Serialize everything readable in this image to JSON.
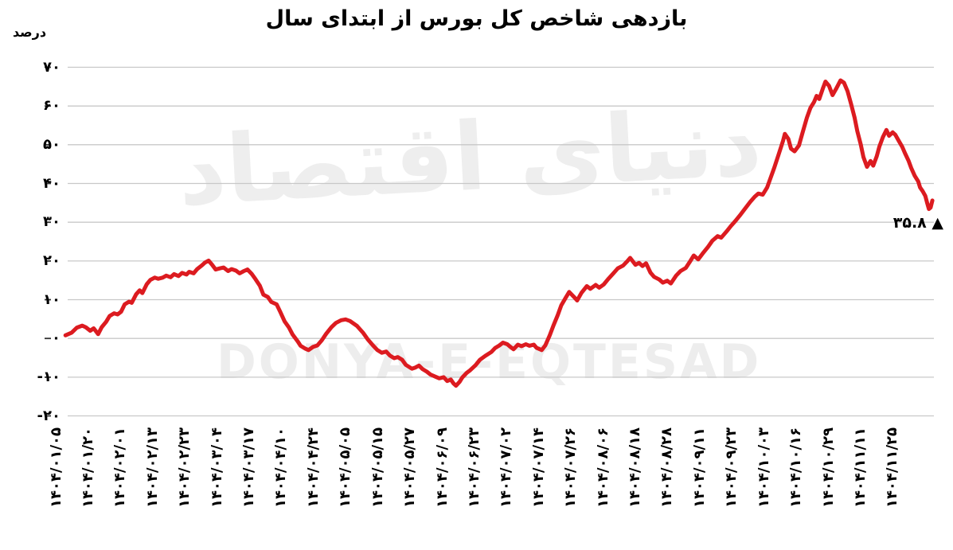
{
  "annotation": {
    "text": "۳۵.۸ ▲",
    "value_label": "۳۵.۸",
    "marker": "▲",
    "value": 35.8
  },
  "watermark": {
    "fa": "دنیای اقتصاد",
    "en": "DONYA-E-EQTESAD"
  },
  "colors": {
    "line": "#dc1b20",
    "grid": "#c8c8c8",
    "tick": "#333333",
    "text": "#000000",
    "watermark": "#ededed"
  },
  "chart_data": {
    "type": "line",
    "title": "بازدهی شاخص کل بورس از ابتدای سال",
    "ylabel": "درصد",
    "xlabel": "",
    "ylim": [
      -20,
      70
    ],
    "grid": true,
    "legend_position": "none",
    "x_tick_rotation": -90,
    "y_ticks": [
      70,
      60,
      50,
      40,
      30,
      20,
      10,
      0,
      -10,
      -20
    ],
    "y_tick_labels": [
      "۷۰",
      "۶۰",
      "۵۰",
      "۴۰",
      "۳۰",
      "۲۰",
      "۱۰",
      "۰",
      "-۱۰",
      "-۲۰"
    ],
    "x_tick_labels": [
      "۱۴۰۴/۰۱/۰۵",
      "۱۴۰۴/۰۱/۲۰",
      "۱۴۰۴/۰۲/۰۱",
      "۱۴۰۴/۰۲/۱۳",
      "۱۴۰۴/۰۲/۲۳",
      "۱۴۰۴/۰۳/۰۴",
      "۱۴۰۴/۰۳/۱۷",
      "۱۴۰۴/۰۴/۱۰",
      "۱۴۰۴/۰۴/۲۴",
      "۱۴۰۴/۰۵/۰۵",
      "۱۴۰۴/۰۵/۱۵",
      "۱۴۰۴/۰۵/۲۷",
      "۱۴۰۴/۰۶/۰۹",
      "۱۴۰۴/۰۶/۲۳",
      "۱۴۰۴/۰۷/۰۲",
      "۱۴۰۴/۰۷/۱۴",
      "۱۴۰۴/۰۷/۲۶",
      "۱۴۰۴/۰۸/۰۶",
      "۱۴۰۴/۰۸/۱۸",
      "۱۴۰۴/۰۸/۲۸",
      "۱۴۰۴/۰۹/۱۱",
      "۱۴۰۴/۰۹/۲۳",
      "۱۴۰۴/۱۰/۰۳",
      "۱۴۰۴/۱۰/۱۶",
      "۱۴۰۴/۱۰/۲۹",
      "۱۴۰۴/۱۱/۱۱",
      "۱۴۰۴/۱۱/۲۵"
    ],
    "last_value": 35.8,
    "series": [
      {
        "name": "بازدهی شاخص کل بورس",
        "color": "#dc1b20",
        "points": [
          [
            0.011,
            0.8
          ],
          [
            0.018,
            1.5
          ],
          [
            0.024,
            2.8
          ],
          [
            0.03,
            3.3
          ],
          [
            0.034,
            2.9
          ],
          [
            0.039,
            2.0
          ],
          [
            0.043,
            2.6
          ],
          [
            0.048,
            1.1
          ],
          [
            0.052,
            2.9
          ],
          [
            0.057,
            4.3
          ],
          [
            0.061,
            5.8
          ],
          [
            0.066,
            6.5
          ],
          [
            0.07,
            6.2
          ],
          [
            0.074,
            6.9
          ],
          [
            0.078,
            8.8
          ],
          [
            0.083,
            9.5
          ],
          [
            0.086,
            9.2
          ],
          [
            0.091,
            11.4
          ],
          [
            0.095,
            12.4
          ],
          [
            0.098,
            11.7
          ],
          [
            0.103,
            14.0
          ],
          [
            0.107,
            15.1
          ],
          [
            0.112,
            15.7
          ],
          [
            0.116,
            15.4
          ],
          [
            0.121,
            15.7
          ],
          [
            0.125,
            16.2
          ],
          [
            0.13,
            15.8
          ],
          [
            0.134,
            16.6
          ],
          [
            0.139,
            16.1
          ],
          [
            0.143,
            16.9
          ],
          [
            0.148,
            16.5
          ],
          [
            0.151,
            17.2
          ],
          [
            0.156,
            16.8
          ],
          [
            0.16,
            17.9
          ],
          [
            0.165,
            18.8
          ],
          [
            0.169,
            19.6
          ],
          [
            0.173,
            20.1
          ],
          [
            0.177,
            19.0
          ],
          [
            0.181,
            17.8
          ],
          [
            0.186,
            18.1
          ],
          [
            0.19,
            18.3
          ],
          [
            0.195,
            17.4
          ],
          [
            0.199,
            17.9
          ],
          [
            0.204,
            17.5
          ],
          [
            0.208,
            16.8
          ],
          [
            0.213,
            17.4
          ],
          [
            0.217,
            17.8
          ],
          [
            0.222,
            16.6
          ],
          [
            0.226,
            15.3
          ],
          [
            0.231,
            13.6
          ],
          [
            0.235,
            11.3
          ],
          [
            0.24,
            10.7
          ],
          [
            0.244,
            9.4
          ],
          [
            0.25,
            8.8
          ],
          [
            0.254,
            6.9
          ],
          [
            0.259,
            4.4
          ],
          [
            0.264,
            2.8
          ],
          [
            0.268,
            1.0
          ],
          [
            0.274,
            -0.8
          ],
          [
            0.277,
            -1.9
          ],
          [
            0.282,
            -2.6
          ],
          [
            0.286,
            -3.0
          ],
          [
            0.291,
            -2.2
          ],
          [
            0.296,
            -1.8
          ],
          [
            0.301,
            -0.5
          ],
          [
            0.306,
            1.2
          ],
          [
            0.312,
            2.9
          ],
          [
            0.317,
            4.0
          ],
          [
            0.323,
            4.7
          ],
          [
            0.328,
            4.9
          ],
          [
            0.333,
            4.5
          ],
          [
            0.341,
            3.2
          ],
          [
            0.348,
            1.4
          ],
          [
            0.353,
            -0.2
          ],
          [
            0.359,
            -1.8
          ],
          [
            0.364,
            -3.0
          ],
          [
            0.369,
            -3.7
          ],
          [
            0.374,
            -3.4
          ],
          [
            0.378,
            -4.4
          ],
          [
            0.383,
            -5.1
          ],
          [
            0.387,
            -4.8
          ],
          [
            0.392,
            -5.5
          ],
          [
            0.396,
            -6.8
          ],
          [
            0.403,
            -7.8
          ],
          [
            0.407,
            -7.5
          ],
          [
            0.411,
            -7.0
          ],
          [
            0.415,
            -7.9
          ],
          [
            0.42,
            -8.6
          ],
          [
            0.424,
            -9.3
          ],
          [
            0.43,
            -9.9
          ],
          [
            0.434,
            -10.3
          ],
          [
            0.439,
            -10.0
          ],
          [
            0.443,
            -11.0
          ],
          [
            0.447,
            -10.6
          ],
          [
            0.45,
            -11.6
          ],
          [
            0.453,
            -12.2
          ],
          [
            0.457,
            -11.2
          ],
          [
            0.46,
            -10.1
          ],
          [
            0.465,
            -8.9
          ],
          [
            0.469,
            -8.2
          ],
          [
            0.475,
            -6.9
          ],
          [
            0.48,
            -5.5
          ],
          [
            0.486,
            -4.5
          ],
          [
            0.493,
            -3.5
          ],
          [
            0.497,
            -2.5
          ],
          [
            0.502,
            -1.8
          ],
          [
            0.506,
            -1.1
          ],
          [
            0.511,
            -1.5
          ],
          [
            0.514,
            -2.1
          ],
          [
            0.518,
            -2.8
          ],
          [
            0.523,
            -1.6
          ],
          [
            0.527,
            -2.0
          ],
          [
            0.532,
            -1.5
          ],
          [
            0.536,
            -1.9
          ],
          [
            0.541,
            -1.6
          ],
          [
            0.544,
            -2.4
          ],
          [
            0.55,
            -3.0
          ],
          [
            0.554,
            -1.8
          ],
          [
            0.559,
            0.8
          ],
          [
            0.563,
            3.2
          ],
          [
            0.568,
            6.0
          ],
          [
            0.572,
            8.5
          ],
          [
            0.577,
            10.5
          ],
          [
            0.581,
            12.0
          ],
          [
            0.586,
            10.8
          ],
          [
            0.59,
            9.8
          ],
          [
            0.595,
            11.8
          ],
          [
            0.601,
            13.5
          ],
          [
            0.605,
            12.8
          ],
          [
            0.611,
            13.8
          ],
          [
            0.615,
            13.1
          ],
          [
            0.62,
            13.9
          ],
          [
            0.625,
            15.3
          ],
          [
            0.631,
            16.8
          ],
          [
            0.636,
            18.1
          ],
          [
            0.642,
            18.8
          ],
          [
            0.647,
            20.0
          ],
          [
            0.65,
            20.8
          ],
          [
            0.656,
            19.0
          ],
          [
            0.66,
            19.5
          ],
          [
            0.664,
            18.7
          ],
          [
            0.668,
            19.4
          ],
          [
            0.673,
            17.0
          ],
          [
            0.677,
            15.9
          ],
          [
            0.683,
            15.2
          ],
          [
            0.687,
            14.4
          ],
          [
            0.692,
            14.9
          ],
          [
            0.696,
            14.2
          ],
          [
            0.702,
            16.2
          ],
          [
            0.707,
            17.4
          ],
          [
            0.713,
            18.2
          ],
          [
            0.717,
            19.6
          ],
          [
            0.722,
            21.4
          ],
          [
            0.727,
            20.4
          ],
          [
            0.732,
            21.9
          ],
          [
            0.738,
            23.6
          ],
          [
            0.743,
            25.2
          ],
          [
            0.749,
            26.4
          ],
          [
            0.753,
            26.0
          ],
          [
            0.759,
            27.6
          ],
          [
            0.764,
            29.0
          ],
          [
            0.769,
            30.3
          ],
          [
            0.775,
            32.0
          ],
          [
            0.78,
            33.5
          ],
          [
            0.786,
            35.3
          ],
          [
            0.791,
            36.6
          ],
          [
            0.795,
            37.4
          ],
          [
            0.8,
            37.1
          ],
          [
            0.805,
            39.0
          ],
          [
            0.809,
            41.5
          ],
          [
            0.813,
            44.0
          ],
          [
            0.818,
            47.5
          ],
          [
            0.823,
            51.0
          ],
          [
            0.825,
            52.8
          ],
          [
            0.829,
            51.5
          ],
          [
            0.832,
            49.0
          ],
          [
            0.836,
            48.3
          ],
          [
            0.841,
            49.8
          ],
          [
            0.845,
            53.0
          ],
          [
            0.85,
            57.0
          ],
          [
            0.854,
            59.5
          ],
          [
            0.858,
            61.0
          ],
          [
            0.861,
            62.6
          ],
          [
            0.864,
            61.8
          ],
          [
            0.868,
            64.5
          ],
          [
            0.871,
            66.3
          ],
          [
            0.875,
            65.2
          ],
          [
            0.879,
            62.8
          ],
          [
            0.883,
            64.4
          ],
          [
            0.888,
            66.6
          ],
          [
            0.892,
            66.0
          ],
          [
            0.896,
            63.8
          ],
          [
            0.9,
            60.5
          ],
          [
            0.904,
            57.0
          ],
          [
            0.907,
            53.5
          ],
          [
            0.911,
            50.0
          ],
          [
            0.914,
            46.8
          ],
          [
            0.918,
            44.3
          ],
          [
            0.922,
            45.8
          ],
          [
            0.925,
            44.6
          ],
          [
            0.929,
            47.0
          ],
          [
            0.932,
            49.5
          ],
          [
            0.936,
            52.0
          ],
          [
            0.94,
            53.8
          ],
          [
            0.943,
            52.3
          ],
          [
            0.947,
            53.2
          ],
          [
            0.95,
            52.6
          ],
          [
            0.954,
            51.0
          ],
          [
            0.958,
            49.4
          ],
          [
            0.961,
            47.8
          ],
          [
            0.965,
            45.9
          ],
          [
            0.968,
            44.0
          ],
          [
            0.972,
            42.0
          ],
          [
            0.976,
            40.5
          ],
          [
            0.978,
            39.0
          ],
          [
            0.981,
            38.0
          ],
          [
            0.984,
            36.8
          ],
          [
            0.986,
            35.0
          ],
          [
            0.988,
            33.4
          ],
          [
            0.99,
            33.8
          ],
          [
            0.992,
            35.6
          ]
        ]
      }
    ]
  }
}
